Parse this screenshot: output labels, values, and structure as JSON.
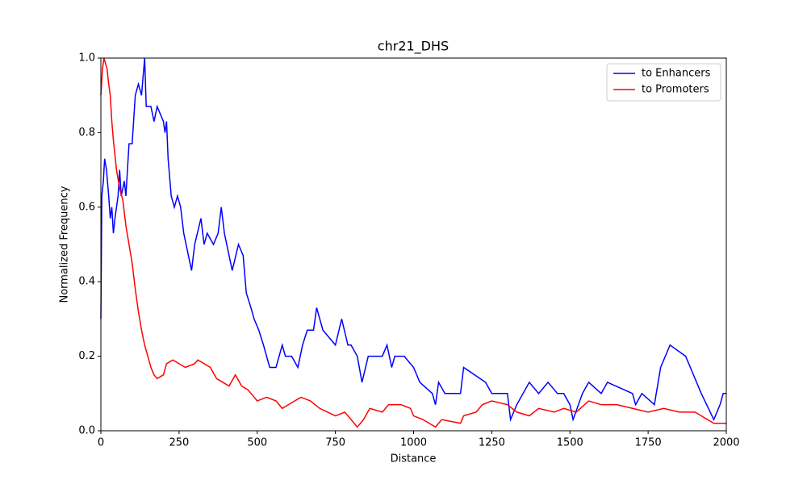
{
  "chart_data": {
    "type": "line",
    "title": "chr21_DHS",
    "xlabel": "Distance",
    "ylabel": "Normalized Frequency",
    "xlim": [
      0,
      2000
    ],
    "ylim": [
      0,
      1
    ],
    "xticks": [
      0,
      250,
      500,
      750,
      1000,
      1250,
      1500,
      1750,
      2000
    ],
    "yticks": [
      {
        "value": 0,
        "label": "0.0"
      },
      {
        "value": 0.2,
        "label": "0.2"
      },
      {
        "value": 0.4,
        "label": "0.4"
      },
      {
        "value": 0.6,
        "label": "0.6"
      },
      {
        "value": 0.8,
        "label": "0.8"
      },
      {
        "value": 1,
        "label": "1.0"
      }
    ],
    "legend": "upper right",
    "series": [
      {
        "name": "to Enhancers",
        "color": "#0000ff",
        "x": [
          0,
          3,
          8,
          12,
          18,
          25,
          30,
          35,
          40,
          45,
          55,
          60,
          65,
          75,
          80,
          90,
          100,
          110,
          120,
          130,
          140,
          145,
          160,
          170,
          180,
          200,
          205,
          210,
          215,
          225,
          235,
          245,
          255,
          265,
          280,
          290,
          300,
          320,
          330,
          340,
          360,
          375,
          385,
          395,
          410,
          420,
          440,
          455,
          465,
          480,
          490,
          505,
          520,
          540,
          560,
          580,
          590,
          610,
          630,
          645,
          660,
          680,
          690,
          710,
          750,
          770,
          790,
          800,
          820,
          835,
          855,
          880,
          900,
          915,
          930,
          940,
          970,
          1000,
          1020,
          1060,
          1070,
          1080,
          1100,
          1150,
          1160,
          1230,
          1250,
          1300,
          1310,
          1330,
          1370,
          1400,
          1430,
          1460,
          1480,
          1500,
          1510,
          1540,
          1560,
          1600,
          1620,
          1700,
          1710,
          1730,
          1770,
          1790,
          1820,
          1870,
          1920,
          1960,
          1980,
          1990,
          2000
        ],
        "values": [
          0.3,
          0.63,
          0.67,
          0.73,
          0.7,
          0.63,
          0.57,
          0.6,
          0.53,
          0.57,
          0.63,
          0.7,
          0.63,
          0.67,
          0.63,
          0.77,
          0.77,
          0.9,
          0.93,
          0.9,
          1.0,
          0.87,
          0.87,
          0.83,
          0.87,
          0.83,
          0.8,
          0.83,
          0.73,
          0.63,
          0.6,
          0.63,
          0.6,
          0.53,
          0.47,
          0.43,
          0.5,
          0.57,
          0.5,
          0.53,
          0.5,
          0.53,
          0.6,
          0.53,
          0.47,
          0.43,
          0.5,
          0.47,
          0.37,
          0.33,
          0.3,
          0.27,
          0.23,
          0.17,
          0.17,
          0.23,
          0.2,
          0.2,
          0.17,
          0.23,
          0.27,
          0.27,
          0.33,
          0.27,
          0.23,
          0.3,
          0.23,
          0.23,
          0.2,
          0.13,
          0.2,
          0.2,
          0.2,
          0.23,
          0.17,
          0.2,
          0.2,
          0.17,
          0.13,
          0.1,
          0.07,
          0.13,
          0.1,
          0.1,
          0.17,
          0.13,
          0.1,
          0.1,
          0.03,
          0.07,
          0.13,
          0.1,
          0.13,
          0.1,
          0.1,
          0.07,
          0.03,
          0.1,
          0.13,
          0.1,
          0.13,
          0.1,
          0.07,
          0.1,
          0.07,
          0.17,
          0.23,
          0.2,
          0.1,
          0.03,
          0.07,
          0.1,
          0.1
        ]
      },
      {
        "name": "to Promoters",
        "color": "#ff0000",
        "x": [
          0,
          5,
          10,
          20,
          25,
          30,
          35,
          40,
          50,
          60,
          70,
          80,
          90,
          100,
          110,
          120,
          130,
          140,
          150,
          160,
          170,
          180,
          200,
          210,
          230,
          250,
          270,
          300,
          310,
          330,
          350,
          370,
          390,
          410,
          430,
          450,
          470,
          500,
          530,
          560,
          580,
          620,
          640,
          670,
          700,
          750,
          780,
          800,
          820,
          840,
          860,
          900,
          920,
          960,
          990,
          1000,
          1030,
          1070,
          1090,
          1150,
          1160,
          1200,
          1220,
          1250,
          1300,
          1330,
          1370,
          1400,
          1450,
          1480,
          1520,
          1560,
          1600,
          1650,
          1700,
          1750,
          1800,
          1850,
          1900,
          1920,
          1960,
          2000
        ],
        "values": [
          0.9,
          0.97,
          1.0,
          0.97,
          0.93,
          0.9,
          0.83,
          0.78,
          0.7,
          0.65,
          0.62,
          0.55,
          0.5,
          0.45,
          0.38,
          0.32,
          0.27,
          0.23,
          0.2,
          0.17,
          0.15,
          0.14,
          0.15,
          0.18,
          0.19,
          0.18,
          0.17,
          0.18,
          0.19,
          0.18,
          0.17,
          0.14,
          0.13,
          0.12,
          0.15,
          0.12,
          0.11,
          0.08,
          0.09,
          0.08,
          0.06,
          0.08,
          0.09,
          0.08,
          0.06,
          0.04,
          0.05,
          0.03,
          0.01,
          0.03,
          0.06,
          0.05,
          0.07,
          0.07,
          0.06,
          0.04,
          0.03,
          0.01,
          0.03,
          0.02,
          0.04,
          0.05,
          0.07,
          0.08,
          0.07,
          0.05,
          0.04,
          0.06,
          0.05,
          0.06,
          0.05,
          0.08,
          0.07,
          0.07,
          0.06,
          0.05,
          0.06,
          0.05,
          0.05,
          0.04,
          0.02,
          0.02
        ]
      }
    ]
  }
}
